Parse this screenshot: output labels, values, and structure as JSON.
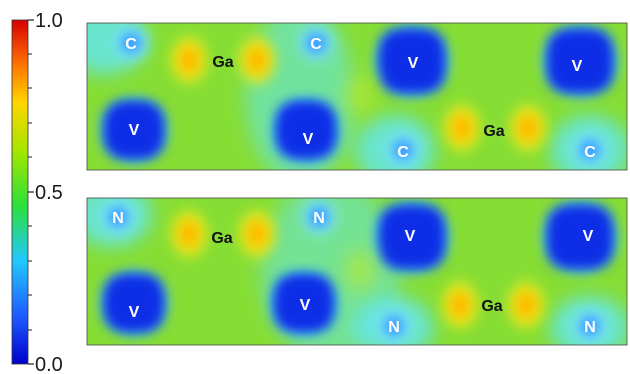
{
  "colorbar": {
    "tick_labels": [
      "1.0",
      "0.5",
      "0.0"
    ],
    "colors": [
      "#0000cc",
      "#1d5cff",
      "#22c8ff",
      "#2be03a",
      "#a5e600",
      "#ffd500",
      "#ff6a00",
      "#d40000"
    ]
  },
  "panels": [
    {
      "name": "top",
      "labels": [
        {
          "text": "C",
          "kind": "light"
        },
        {
          "text": "Ga",
          "kind": "dark"
        },
        {
          "text": "C",
          "kind": "light"
        },
        {
          "text": "V",
          "kind": "light"
        },
        {
          "text": "V",
          "kind": "light"
        },
        {
          "text": "V",
          "kind": "light"
        },
        {
          "text": "V",
          "kind": "light"
        },
        {
          "text": "Ga",
          "kind": "dark"
        },
        {
          "text": "C",
          "kind": "light"
        },
        {
          "text": "C",
          "kind": "light"
        }
      ]
    },
    {
      "name": "bottom",
      "labels": [
        {
          "text": "N",
          "kind": "light"
        },
        {
          "text": "Ga",
          "kind": "dark"
        },
        {
          "text": "N",
          "kind": "light"
        },
        {
          "text": "V",
          "kind": "light"
        },
        {
          "text": "V",
          "kind": "light"
        },
        {
          "text": "V",
          "kind": "light"
        },
        {
          "text": "V",
          "kind": "light"
        },
        {
          "text": "Ga",
          "kind": "dark"
        },
        {
          "text": "N",
          "kind": "light"
        },
        {
          "text": "N",
          "kind": "light"
        }
      ]
    }
  ]
}
